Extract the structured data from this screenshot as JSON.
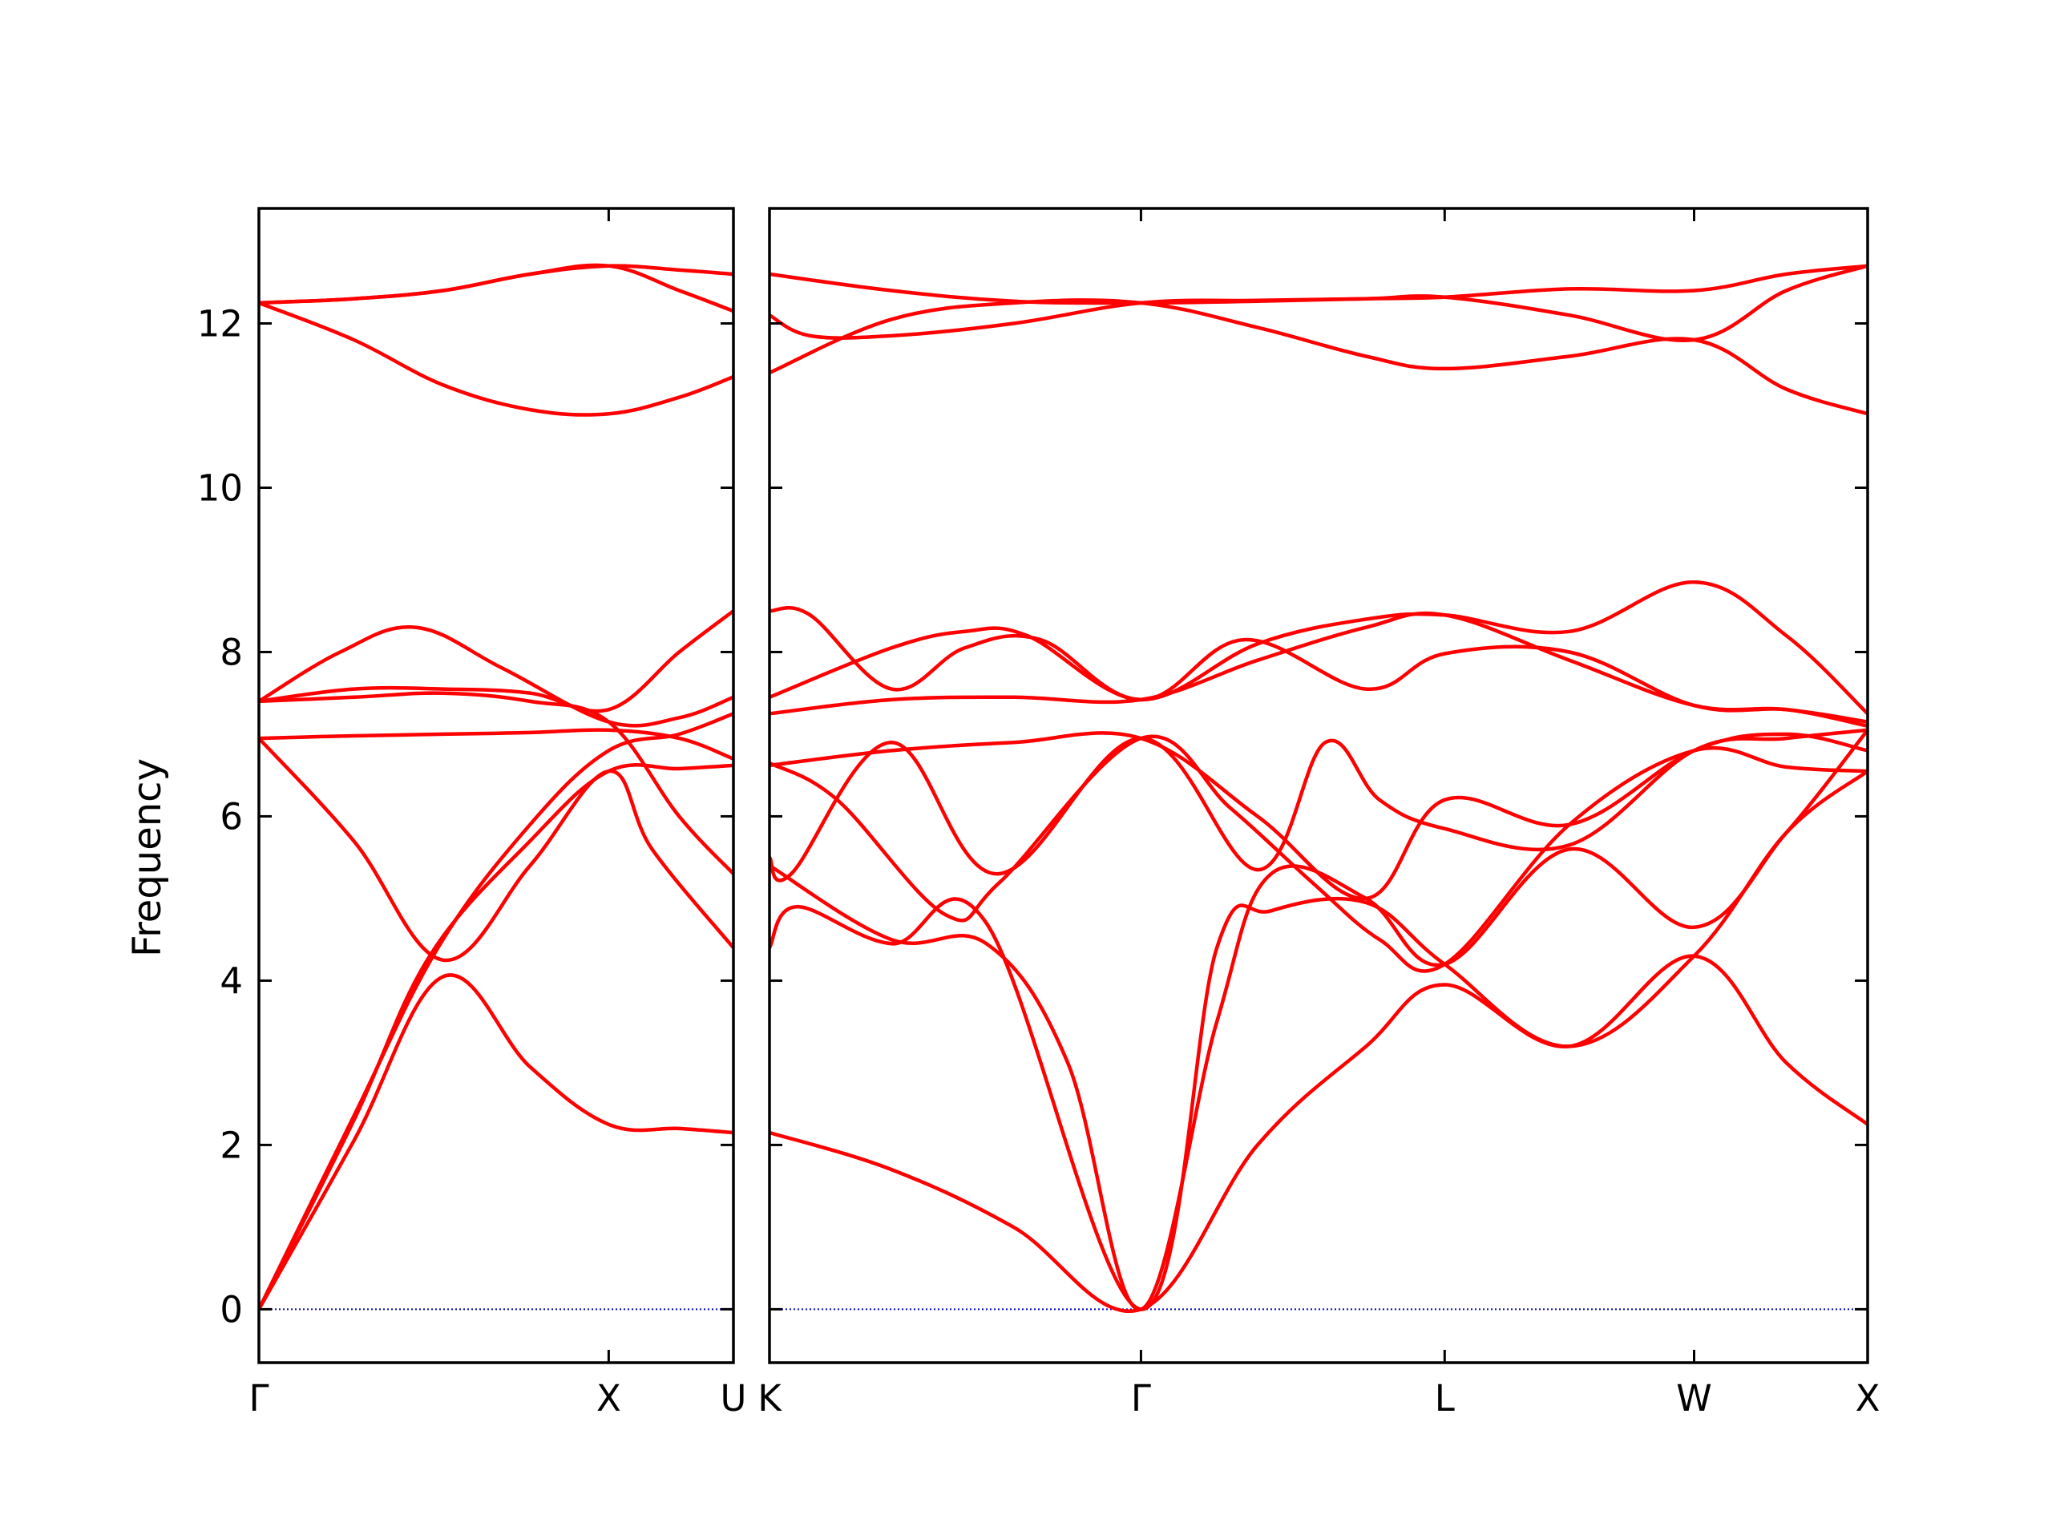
{
  "chart_data": {
    "type": "line",
    "title": "",
    "ylabel": "Frequency",
    "ylim": [
      -0.65,
      13.4
    ],
    "yticks": [
      0,
      2,
      4,
      6,
      8,
      10,
      12
    ],
    "yticklabels": [
      "0",
      "2",
      "4",
      "6",
      "8",
      "10",
      "12"
    ],
    "grid": false,
    "legend": "none",
    "colors": {
      "bands": "#ff0000",
      "zero_line": "#0000cc",
      "axes": "#000000"
    },
    "panels": [
      {
        "id": "left",
        "xlim": [
          0,
          1.75
        ],
        "high_symmetry_points": [
          {
            "label": "Γ",
            "x": 0
          },
          {
            "label": "X",
            "x": 1.29
          }
        ],
        "right_edge_label": "U",
        "bands": [
          {
            "name": "",
            "x": [
              0,
              0.35,
              0.68,
              1.0,
              1.29,
              1.55,
              1.75
            ],
            "y": [
              0.0,
              2.05,
              4.05,
              2.95,
              2.25,
              2.2,
              2.15
            ]
          },
          {
            "name": "",
            "x": [
              0,
              0.35,
              0.63,
              1.0,
              1.29,
              1.55,
              1.75
            ],
            "y": [
              0.0,
              2.3,
              4.3,
              5.7,
              6.55,
              6.58,
              6.62
            ]
          },
          {
            "name": "",
            "x": [
              0,
              0.35,
              0.66,
              1.0,
              1.29,
              1.55,
              1.75
            ],
            "y": [
              0.0,
              2.35,
              4.4,
              5.9,
              6.8,
              7.0,
              7.25
            ]
          },
          {
            "name": "",
            "x": [
              0,
              0.35,
              0.68,
              1.0,
              1.29,
              1.45,
              1.75
            ],
            "y": [
              6.95,
              5.7,
              4.25,
              5.4,
              6.55,
              5.6,
              4.4
            ]
          },
          {
            "name": "",
            "x": [
              0,
              0.35,
              0.68,
              1.0,
              1.29,
              1.55,
              1.75
            ],
            "y": [
              6.95,
              6.98,
              7.0,
              7.02,
              7.05,
              6.95,
              6.7
            ]
          },
          {
            "name": "",
            "x": [
              0,
              0.35,
              0.68,
              1.0,
              1.29,
              1.55,
              1.75
            ],
            "y": [
              7.4,
              7.45,
              7.5,
              7.4,
              7.15,
              6.0,
              5.3
            ]
          },
          {
            "name": "",
            "x": [
              0,
              0.3,
              0.58,
              0.9,
              1.29,
              1.55,
              1.75
            ],
            "y": [
              7.4,
              8.0,
              8.3,
              7.8,
              7.15,
              7.2,
              7.45
            ]
          },
          {
            "name": "",
            "x": [
              0,
              0.35,
              0.68,
              1.0,
              1.29,
              1.55,
              1.75
            ],
            "y": [
              7.4,
              7.55,
              7.55,
              7.5,
              7.3,
              8.0,
              8.5
            ]
          },
          {
            "name": "",
            "x": [
              0,
              0.35,
              0.68,
              1.0,
              1.29,
              1.55,
              1.75
            ],
            "y": [
              12.25,
              11.8,
              11.25,
              10.95,
              10.9,
              11.1,
              11.35
            ]
          },
          {
            "name": "",
            "x": [
              0,
              0.35,
              0.68,
              1.0,
              1.29,
              1.55,
              1.75
            ],
            "y": [
              12.25,
              12.3,
              12.4,
              12.6,
              12.7,
              12.4,
              12.15
            ]
          },
          {
            "name": "",
            "x": [
              0,
              0.35,
              0.68,
              1.0,
              1.29,
              1.55,
              1.75
            ],
            "y": [
              12.25,
              12.3,
              12.4,
              12.6,
              12.7,
              12.65,
              12.6
            ]
          }
        ],
        "zero_line": {
          "y": 0,
          "style": "dotted"
        }
      },
      {
        "id": "right",
        "xlim": [
          0,
          4.05
        ],
        "high_symmetry_points": [
          {
            "label": "K",
            "x": 0
          },
          {
            "label": "Γ",
            "x": 1.37
          },
          {
            "label": "L",
            "x": 2.49
          },
          {
            "label": "W",
            "x": 3.41
          },
          {
            "label": "X",
            "x": 4.05
          }
        ],
        "bands": [
          {
            "name": "",
            "x": [
              0,
              0.45,
              0.9,
              1.37,
              1.8,
              2.2,
              2.49,
              2.95,
              3.41,
              3.75,
              4.05
            ],
            "y": [
              2.15,
              1.7,
              1.0,
              0.0,
              2.0,
              3.2,
              3.95,
              3.2,
              4.3,
              3.0,
              2.25
            ]
          },
          {
            "name": "",
            "x": [
              0,
              0.1,
              0.45,
              0.8,
              1.37,
              1.65,
              1.85,
              2.2,
              2.49,
              2.95,
              3.41,
              3.75,
              4.05
            ],
            "y": [
              4.4,
              4.9,
              4.45,
              4.7,
              0.0,
              4.4,
              4.85,
              4.95,
              4.2,
              3.2,
              4.3,
              5.8,
              6.55
            ]
          },
          {
            "name": "",
            "x": [
              0,
              0.45,
              0.8,
              1.1,
              1.37,
              1.65,
              1.85,
              2.2,
              2.49,
              2.95,
              3.41,
              3.75,
              4.05
            ],
            "y": [
              5.4,
              4.5,
              4.45,
              3.0,
              0.0,
              3.5,
              5.3,
              5.0,
              4.2,
              5.6,
              4.65,
              5.8,
              7.05
            ]
          },
          {
            "name": "",
            "x": [
              0,
              0.08,
              0.45,
              0.84,
              1.37,
              1.8,
              2.05,
              2.25,
              2.49,
              2.95,
              3.41,
              3.75,
              4.05
            ],
            "y": [
              5.5,
              5.3,
              6.9,
              5.3,
              6.95,
              5.35,
              6.9,
              6.2,
              5.85,
              5.65,
              6.8,
              6.95,
              7.05
            ]
          },
          {
            "name": "",
            "x": [
              0,
              0.25,
              0.65,
              0.85,
              1.37,
              1.7,
              2.0,
              2.25,
              2.49,
              2.95,
              3.41,
              3.75,
              4.05
            ],
            "y": [
              6.65,
              6.2,
              4.8,
              5.2,
              6.95,
              6.1,
              5.2,
              4.5,
              4.2,
              5.9,
              6.8,
              6.6,
              6.55
            ]
          },
          {
            "name": "",
            "x": [
              0,
              0.45,
              0.9,
              1.37,
              1.8,
              2.2,
              2.49,
              2.95,
              3.41,
              3.75,
              4.05
            ],
            "y": [
              6.62,
              6.8,
              6.9,
              6.95,
              6.0,
              5.0,
              6.2,
              5.9,
              6.8,
              7.0,
              6.8
            ]
          },
          {
            "name": "",
            "x": [
              0,
              0.45,
              0.9,
              1.37,
              1.8,
              2.2,
              2.49,
              2.95,
              3.41,
              3.75,
              4.05
            ],
            "y": [
              7.25,
              7.42,
              7.45,
              7.42,
              7.9,
              8.3,
              8.45,
              7.9,
              7.35,
              7.3,
              7.1
            ]
          },
          {
            "name": "",
            "x": [
              0,
              0.45,
              0.72,
              0.95,
              1.37,
              1.75,
              2.2,
              2.49,
              2.95,
              3.41,
              3.75,
              4.05
            ],
            "y": [
              7.45,
              8.05,
              8.25,
              8.2,
              7.42,
              8.15,
              7.55,
              7.98,
              8.0,
              7.35,
              7.3,
              7.15
            ]
          },
          {
            "name": "",
            "x": [
              0,
              0.15,
              0.45,
              0.72,
              1.0,
              1.37,
              1.8,
              2.2,
              2.49,
              2.95,
              3.41,
              3.75,
              4.05
            ],
            "y": [
              8.5,
              8.45,
              7.55,
              8.05,
              8.15,
              7.42,
              8.1,
              8.4,
              8.45,
              8.25,
              8.85,
              8.2,
              7.25
            ]
          },
          {
            "name": "",
            "x": [
              0,
              0.45,
              0.9,
              1.37,
              1.8,
              2.2,
              2.49,
              2.95,
              3.41,
              3.75,
              4.05
            ],
            "y": [
              11.4,
              12.05,
              12.25,
              12.25,
              11.95,
              11.6,
              11.45,
              11.6,
              11.8,
              11.2,
              10.9
            ]
          },
          {
            "name": "",
            "x": [
              0,
              0.15,
              0.45,
              0.9,
              1.37,
              1.8,
              2.2,
              2.49,
              2.95,
              3.41,
              3.75,
              4.05
            ],
            "y": [
              12.1,
              11.85,
              11.85,
              12.0,
              12.25,
              12.28,
              12.3,
              12.32,
              12.1,
              11.8,
              12.4,
              12.7
            ]
          },
          {
            "name": "",
            "x": [
              0,
              0.45,
              0.9,
              1.37,
              1.8,
              2.2,
              2.49,
              2.95,
              3.41,
              3.75,
              4.05
            ],
            "y": [
              12.6,
              12.4,
              12.27,
              12.25,
              12.27,
              12.3,
              12.32,
              12.42,
              12.4,
              12.6,
              12.7
            ]
          }
        ],
        "zero_line": {
          "y": 0,
          "style": "dotted"
        }
      }
    ]
  }
}
